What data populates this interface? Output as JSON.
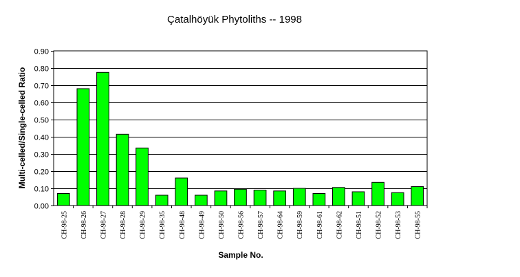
{
  "chart_data": {
    "type": "bar",
    "title": "Çatalhöyük Phytoliths -- 1998",
    "xlabel": "Sample No.",
    "ylabel": "Multi-celled/Single-celled Ratio",
    "ylim": [
      0,
      0.9
    ],
    "ytick_step": 0.1,
    "ytick_labels": [
      "0.00",
      "0.10",
      "0.20",
      "0.30",
      "0.40",
      "0.50",
      "0.60",
      "0.70",
      "0.80",
      "0.90"
    ],
    "grid": true,
    "bar_color": "#00ff00",
    "categories": [
      "CH-98-25",
      "CH-98-26",
      "CH-98-27",
      "CH-98-28",
      "CH-98-29",
      "CH-98-35",
      "CH-98-48",
      "CH-98-49",
      "CH-98-50",
      "CH-98-56",
      "CH-98-57",
      "CH-98-64",
      "CH-98-59",
      "CH-98-61",
      "CH-98-62",
      "CH-98-51",
      "CH-98-52",
      "CH-98-53",
      "CH-98-55"
    ],
    "values": [
      0.07,
      0.68,
      0.775,
      0.415,
      0.335,
      0.06,
      0.16,
      0.06,
      0.085,
      0.095,
      0.09,
      0.085,
      0.1,
      0.07,
      0.105,
      0.08,
      0.135,
      0.075,
      0.11
    ]
  }
}
